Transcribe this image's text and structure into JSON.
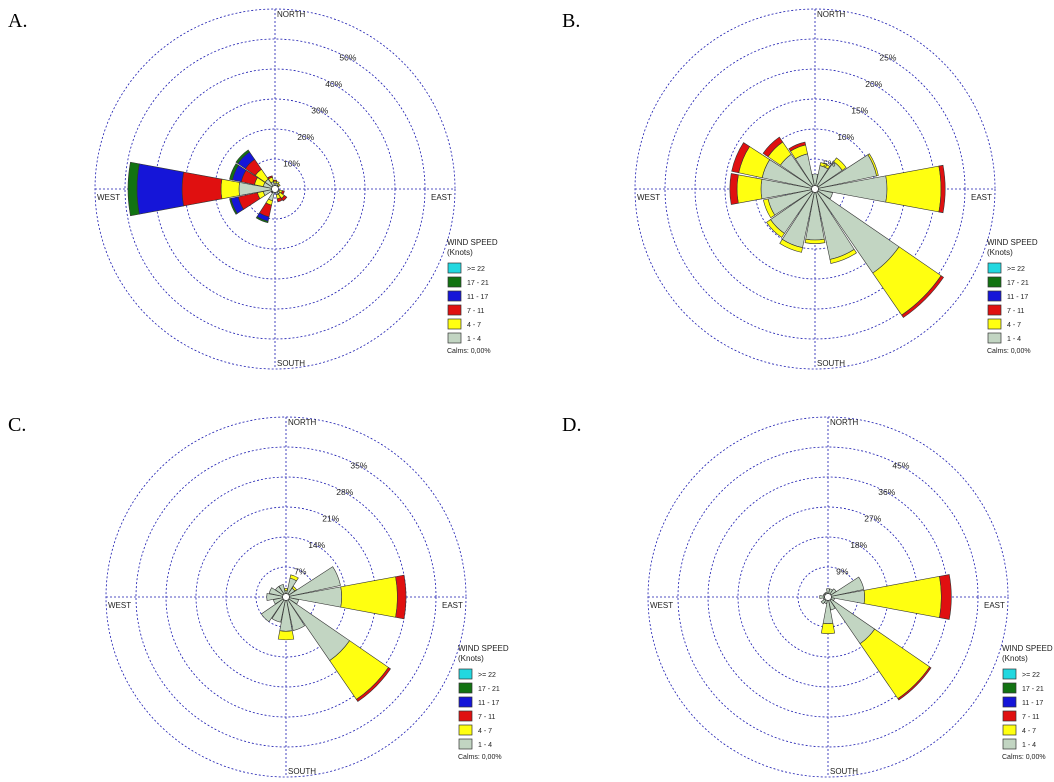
{
  "legend": {
    "title_line1": "WIND SPEED",
    "title_line2": "(Knots)",
    "bins": [
      {
        "label": ">= 22",
        "color": "#22d8e0"
      },
      {
        "label": "17 - 21",
        "color": "#127312"
      },
      {
        "label": "11 - 17",
        "color": "#1515d8"
      },
      {
        "label": "7 - 11",
        "color": "#e01010"
      },
      {
        "label": "4 - 7",
        "color": "#ffff10"
      },
      {
        "label": "1 - 4",
        "color": "#c2d5c2"
      }
    ],
    "calms": "Calms: 0,00%"
  },
  "directions": {
    "north": "NORTH",
    "south": "SOUTH",
    "east": "EAST",
    "west": "WEST"
  },
  "colors": {
    "grid": "#1a1ab0",
    "outline": "#333333"
  },
  "chart_data": [
    {
      "type": "windrose",
      "panel_label": "A.",
      "ring_labels": [
        "10%",
        "20%",
        "30%",
        "40%",
        "50%"
      ],
      "r_max_percent": 60,
      "sectors": [
        {
          "dir_deg": 0,
          "values": [
            2,
            0.6,
            0.4,
            0,
            0,
            0
          ]
        },
        {
          "dir_deg": 22.5,
          "values": [
            2,
            0.6,
            0,
            0,
            0,
            0
          ]
        },
        {
          "dir_deg": 45,
          "values": [
            1.5,
            0.6,
            0,
            0,
            0,
            0
          ]
        },
        {
          "dir_deg": 112.5,
          "values": [
            1.5,
            1.0,
            0.7,
            0,
            0,
            0
          ]
        },
        {
          "dir_deg": 135,
          "values": [
            2,
            1.8,
            1.0,
            0,
            0,
            0
          ]
        },
        {
          "dir_deg": 157.5,
          "values": [
            2,
            1.4,
            1.0,
            0,
            0,
            0
          ]
        },
        {
          "dir_deg": 202.5,
          "values": [
            4,
            1.5,
            4.0,
            1.5,
            0.5,
            0
          ]
        },
        {
          "dir_deg": 225,
          "values": [
            1.0,
            0.2,
            0.2,
            0.2,
            0,
            0
          ]
        },
        {
          "dir_deg": 247.5,
          "values": [
            4,
            2.0,
            6.5,
            2.5,
            0.5,
            0
          ]
        },
        {
          "dir_deg": 270,
          "values": [
            12,
            6.0,
            13,
            15,
            3.0,
            0
          ]
        },
        {
          "dir_deg": 292.5,
          "values": [
            4,
            3.0,
            4.5,
            3.0,
            1.0,
            0
          ]
        },
        {
          "dir_deg": 315,
          "values": [
            4,
            4.0,
            4.0,
            3.0,
            0.8,
            0
          ]
        },
        {
          "dir_deg": 337.5,
          "values": [
            2.5,
            1.5,
            0.5,
            0,
            0,
            0
          ]
        }
      ]
    },
    {
      "type": "windrose",
      "panel_label": "B.",
      "ring_labels": [
        "5%",
        "10%",
        "15%",
        "20%",
        "25%"
      ],
      "r_max_percent": 30,
      "sectors": [
        {
          "dir_deg": 0,
          "values": [
            2.5,
            0,
            0,
            0,
            0,
            0
          ]
        },
        {
          "dir_deg": 22.5,
          "values": [
            4.0,
            0.5,
            0,
            0,
            0,
            0
          ]
        },
        {
          "dir_deg": 45,
          "values": [
            5.5,
            0.8,
            0,
            0,
            0,
            0
          ]
        },
        {
          "dir_deg": 67.5,
          "values": [
            10.5,
            0.3,
            0,
            0,
            0,
            0
          ]
        },
        {
          "dir_deg": 90,
          "values": [
            12.0,
            9.0,
            0.7,
            0,
            0,
            0
          ]
        },
        {
          "dir_deg": 112.5,
          "values": [
            3.0,
            0,
            0,
            0,
            0,
            0
          ]
        },
        {
          "dir_deg": 135,
          "values": [
            17.0,
            8.5,
            0.5,
            0,
            0,
            0
          ]
        },
        {
          "dir_deg": 157.5,
          "values": [
            12.0,
            0.7,
            0,
            0,
            0,
            0
          ]
        },
        {
          "dir_deg": 180,
          "values": [
            8.5,
            0.6,
            0,
            0,
            0,
            0
          ]
        },
        {
          "dir_deg": 202.5,
          "values": [
            10.0,
            0.8,
            0,
            0,
            0,
            0
          ]
        },
        {
          "dir_deg": 225,
          "values": [
            9.0,
            0.8,
            0,
            0,
            0,
            0
          ]
        },
        {
          "dir_deg": 247.5,
          "values": [
            8.0,
            0.8,
            0,
            0,
            0,
            0
          ]
        },
        {
          "dir_deg": 270,
          "values": [
            9.0,
            4.0,
            1.2,
            0,
            0,
            0
          ]
        },
        {
          "dir_deg": 292.5,
          "values": [
            9.0,
            4.0,
            1.2,
            0,
            0,
            0
          ]
        },
        {
          "dir_deg": 315,
          "values": [
            7.0,
            2.5,
            1.0,
            0,
            0,
            0
          ]
        },
        {
          "dir_deg": 337.5,
          "values": [
            6.0,
            1.5,
            0.5,
            0,
            0,
            0
          ]
        }
      ]
    },
    {
      "type": "windrose",
      "panel_label": "C.",
      "ring_labels": [
        "7%",
        "14%",
        "21%",
        "28%",
        "35%"
      ],
      "r_max_percent": 42,
      "sectors": [
        {
          "dir_deg": 0,
          "values": [
            1.5,
            0.5,
            0,
            0,
            0,
            0
          ]
        },
        {
          "dir_deg": 22.5,
          "values": [
            4.5,
            0.8,
            0,
            0,
            0,
            0
          ]
        },
        {
          "dir_deg": 45,
          "values": [
            2.5,
            0.5,
            0,
            0,
            0,
            0
          ]
        },
        {
          "dir_deg": 67.5,
          "values": [
            13.0,
            0,
            0,
            0,
            0,
            0
          ]
        },
        {
          "dir_deg": 90,
          "values": [
            13.0,
            13.0,
            2.0,
            0,
            0,
            0
          ]
        },
        {
          "dir_deg": 112.5,
          "values": [
            3.0,
            0,
            0,
            0,
            0,
            0
          ]
        },
        {
          "dir_deg": 135,
          "values": [
            18.0,
            11.0,
            0.6,
            0,
            0,
            0
          ]
        },
        {
          "dir_deg": 157.5,
          "values": [
            8.0,
            0,
            0,
            0,
            0,
            0
          ]
        },
        {
          "dir_deg": 180,
          "values": [
            8.0,
            2.0,
            0,
            0,
            0,
            0
          ]
        },
        {
          "dir_deg": 202.5,
          "values": [
            6.0,
            0,
            0,
            0,
            0,
            0
          ]
        },
        {
          "dir_deg": 225,
          "values": [
            7.0,
            0,
            0,
            0,
            0,
            0
          ]
        },
        {
          "dir_deg": 247.5,
          "values": [
            3.0,
            0,
            0,
            0,
            0,
            0
          ]
        },
        {
          "dir_deg": 270,
          "values": [
            4.5,
            0,
            0,
            0,
            0,
            0
          ]
        },
        {
          "dir_deg": 292.5,
          "values": [
            4.0,
            0,
            0,
            0,
            0,
            0
          ]
        },
        {
          "dir_deg": 315,
          "values": [
            3.0,
            0,
            0,
            0,
            0,
            0
          ]
        },
        {
          "dir_deg": 337.5,
          "values": [
            3.0,
            0,
            0,
            0,
            0,
            0
          ]
        }
      ]
    },
    {
      "type": "windrose",
      "panel_label": "D.",
      "ring_labels": [
        "9%",
        "18%",
        "27%",
        "36%",
        "45%"
      ],
      "r_max_percent": 54,
      "sectors": [
        {
          "dir_deg": 0,
          "values": [
            2.5,
            0,
            0,
            0,
            0,
            0
          ]
        },
        {
          "dir_deg": 22.5,
          "values": [
            2.5,
            0,
            0,
            0,
            0,
            0
          ]
        },
        {
          "dir_deg": 45,
          "values": [
            3.0,
            0,
            0,
            0,
            0,
            0
          ]
        },
        {
          "dir_deg": 67.5,
          "values": [
            11.0,
            0,
            0,
            0,
            0,
            0
          ]
        },
        {
          "dir_deg": 90,
          "values": [
            11.0,
            23.0,
            3.0,
            0,
            0,
            0
          ]
        },
        {
          "dir_deg": 112.5,
          "values": [
            2.0,
            0,
            0,
            0,
            0,
            0
          ]
        },
        {
          "dir_deg": 135,
          "values": [
            17.0,
            20.0,
            0.5,
            0,
            0,
            0
          ]
        },
        {
          "dir_deg": 157.5,
          "values": [
            4.0,
            0,
            0,
            0,
            0,
            0
          ]
        },
        {
          "dir_deg": 180,
          "values": [
            8.0,
            3.0,
            0,
            0,
            0,
            0
          ]
        },
        {
          "dir_deg": 202.5,
          "values": [
            2.0,
            0,
            0,
            0,
            0,
            0
          ]
        },
        {
          "dir_deg": 225,
          "values": [
            2.5,
            0,
            0,
            0,
            0,
            0
          ]
        },
        {
          "dir_deg": 247.5,
          "values": [
            1.5,
            0,
            0,
            0,
            0,
            0
          ]
        },
        {
          "dir_deg": 270,
          "values": [
            2.5,
            0,
            0,
            0,
            0,
            0
          ]
        },
        {
          "dir_deg": 292.5,
          "values": [
            1.5,
            0,
            0,
            0,
            0,
            0
          ]
        },
        {
          "dir_deg": 315,
          "values": [
            1.5,
            0,
            0,
            0,
            0,
            0
          ]
        },
        {
          "dir_deg": 337.5,
          "values": [
            1.5,
            0,
            0,
            0,
            0,
            0
          ]
        }
      ]
    }
  ]
}
